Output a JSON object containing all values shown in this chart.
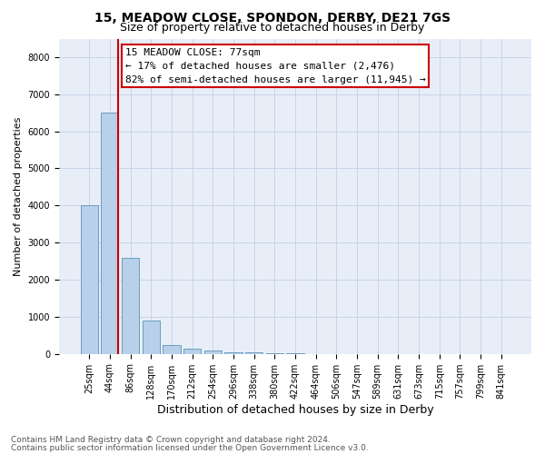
{
  "title1": "15, MEADOW CLOSE, SPONDON, DERBY, DE21 7GS",
  "title2": "Size of property relative to detached houses in Derby",
  "xlabel": "Distribution of detached houses by size in Derby",
  "ylabel": "Number of detached properties",
  "bar_labels": [
    "25sqm",
    "44sqm",
    "86sqm",
    "128sqm",
    "170sqm",
    "212sqm",
    "254sqm",
    "296sqm",
    "338sqm",
    "380sqm",
    "422sqm",
    "464sqm",
    "506sqm",
    "547sqm",
    "589sqm",
    "631sqm",
    "673sqm",
    "715sqm",
    "757sqm",
    "799sqm",
    "841sqm"
  ],
  "bar_values": [
    4000,
    6500,
    2600,
    900,
    250,
    150,
    100,
    50,
    30,
    20,
    10,
    5,
    2,
    1,
    0,
    0,
    0,
    0,
    0,
    0,
    0
  ],
  "bar_color": "#b8d0ea",
  "bar_edge_color": "#6a9ec0",
  "grid_color": "#c8d4e8",
  "background_color": "#e8eef8",
  "property_line_x": 1.42,
  "annotation_line1": "15 MEADOW CLOSE: 77sqm",
  "annotation_line2": "← 17% of detached houses are smaller (2,476)",
  "annotation_line3": "82% of semi-detached houses are larger (11,945) →",
  "annotation_box_color": "#ffffff",
  "annotation_box_edge": "#cc0000",
  "red_line_color": "#cc0000",
  "ylim": [
    0,
    8500
  ],
  "yticks": [
    0,
    1000,
    2000,
    3000,
    4000,
    5000,
    6000,
    7000,
    8000
  ],
  "footnote1": "Contains HM Land Registry data © Crown copyright and database right 2024.",
  "footnote2": "Contains public sector information licensed under the Open Government Licence v3.0.",
  "title1_fontsize": 10,
  "title2_fontsize": 9,
  "xlabel_fontsize": 9,
  "ylabel_fontsize": 8,
  "tick_fontsize": 7,
  "annot_fontsize": 8,
  "footnote_fontsize": 6.5
}
